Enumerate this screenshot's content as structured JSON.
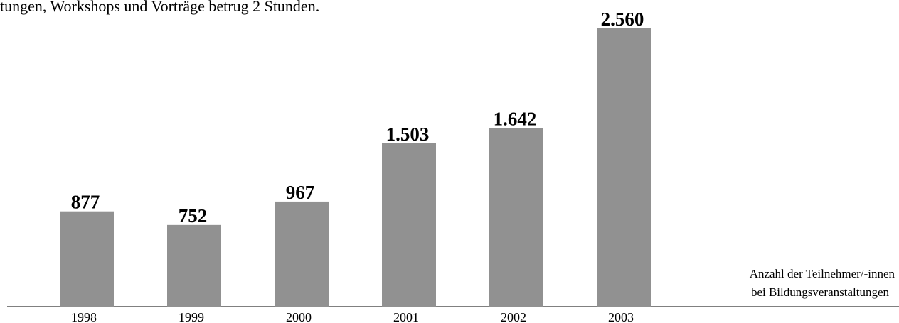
{
  "chart_data": {
    "type": "bar",
    "caption": "tungen, Workshops und Vorträge betrug 2 Stunden.",
    "categories": [
      "1998",
      "1999",
      "2000",
      "2001",
      "2002",
      "2003"
    ],
    "values": [
      877,
      752,
      967,
      1503,
      1642,
      2560
    ],
    "value_labels": [
      "877",
      "752",
      "967",
      "1.503",
      "1.642",
      "2.560"
    ],
    "color": "#919191",
    "ylim": [
      0,
      2560
    ],
    "annotation": [
      "Anzahl der Teilnehmer/-innen",
      "bei Bildungsveranstaltungen"
    ]
  }
}
